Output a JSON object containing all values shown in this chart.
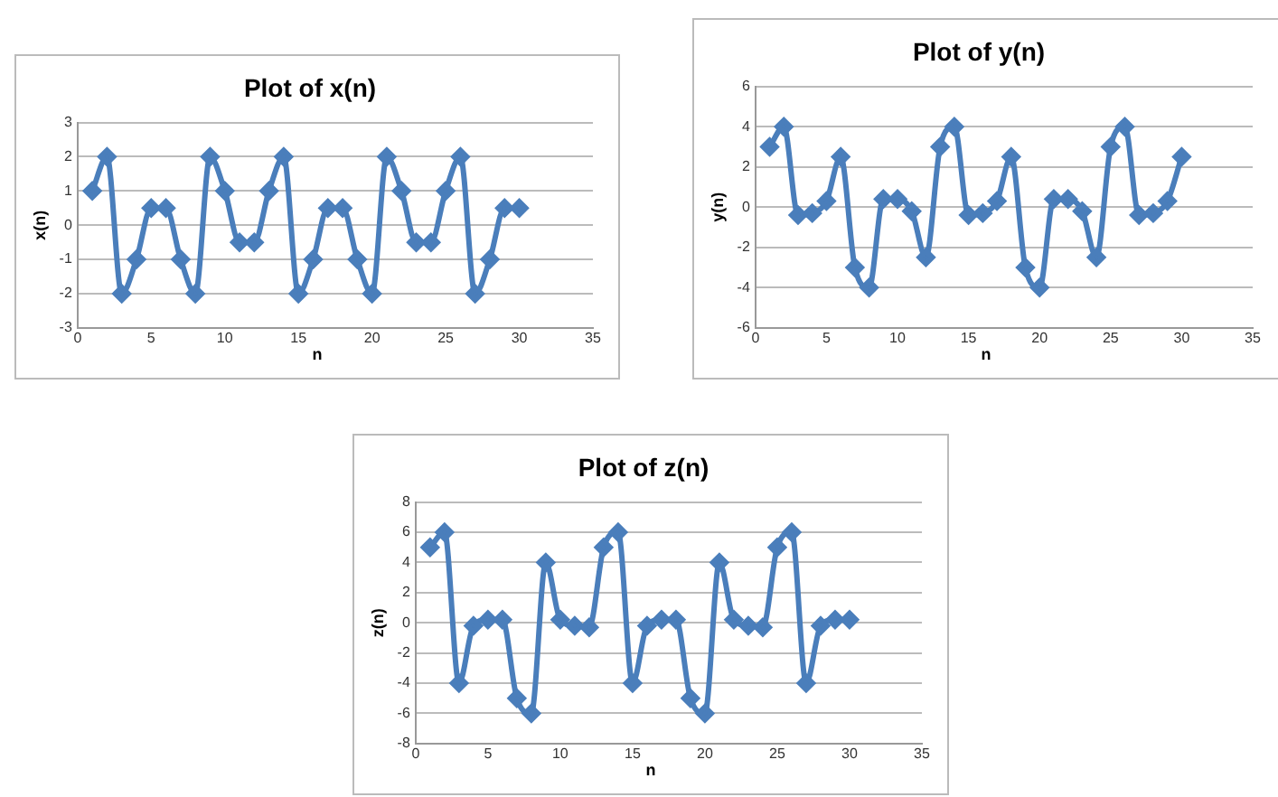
{
  "chart_data": [
    {
      "type": "line",
      "title": "Plot of x(n)",
      "xlabel": "n",
      "ylabel": "x(n)",
      "x": [
        1,
        2,
        3,
        4,
        5,
        6,
        7,
        8,
        9,
        10,
        11,
        12,
        13,
        14,
        15,
        16,
        17,
        18,
        19,
        20,
        21,
        22,
        23,
        24,
        25,
        26,
        27,
        28,
        29,
        30
      ],
      "series": [
        {
          "color": "#4a7ebb",
          "values": [
            1,
            2,
            -2,
            -1,
            0.5,
            0.5,
            -1,
            -2,
            2,
            1,
            -0.5,
            -0.5,
            1,
            2,
            -2,
            -1,
            0.5,
            0.5,
            -1,
            -2,
            2,
            1,
            -0.5,
            -0.5,
            1,
            2,
            -2,
            -1,
            0.5,
            0.5
          ]
        }
      ],
      "xlim": [
        0,
        35
      ],
      "xticks": [
        0,
        5,
        10,
        15,
        20,
        25,
        30,
        35
      ],
      "ylim": [
        -3,
        3
      ],
      "yticks": [
        -3,
        -2,
        -1,
        0,
        1,
        2,
        3
      ],
      "grid": "y",
      "legend": false,
      "marker": "diamond",
      "line_style": "solid"
    },
    {
      "type": "line",
      "title": "Plot of y(n)",
      "xlabel": "n",
      "ylabel": "y(n)",
      "x": [
        1,
        2,
        3,
        4,
        5,
        6,
        7,
        8,
        9,
        10,
        11,
        12,
        13,
        14,
        15,
        16,
        17,
        18,
        19,
        20,
        21,
        22,
        23,
        24,
        25,
        26,
        27,
        28,
        29,
        30
      ],
      "series": [
        {
          "color": "#4a7ebb",
          "values": [
            3,
            4,
            -0.4,
            -0.3,
            0.3,
            2.5,
            -3,
            -4,
            0.4,
            0.4,
            -0.2,
            -2.5,
            3,
            4,
            -0.4,
            -0.3,
            0.3,
            2.5,
            -3,
            -4,
            0.4,
            0.4,
            -0.2,
            -2.5,
            3,
            4,
            -0.4,
            -0.3,
            0.3,
            2.5
          ]
        }
      ],
      "xlim": [
        0,
        35
      ],
      "xticks": [
        0,
        5,
        10,
        15,
        20,
        25,
        30,
        35
      ],
      "ylim": [
        -6,
        6
      ],
      "yticks": [
        -6,
        -4,
        -2,
        0,
        2,
        4,
        6
      ],
      "grid": "y",
      "legend": false,
      "marker": "diamond",
      "line_style": "solid"
    },
    {
      "type": "line",
      "title": "Plot of z(n)",
      "xlabel": "n",
      "ylabel": "z(n)",
      "x": [
        1,
        2,
        3,
        4,
        5,
        6,
        7,
        8,
        9,
        10,
        11,
        12,
        13,
        14,
        15,
        16,
        17,
        18,
        19,
        20,
        21,
        22,
        23,
        24,
        25,
        26,
        27,
        28,
        29,
        30
      ],
      "series": [
        {
          "color": "#4a7ebb",
          "values": [
            5,
            6,
            -4,
            -0.2,
            0.2,
            0.2,
            -5,
            -6,
            4,
            0.2,
            -0.2,
            -0.3,
            5,
            6,
            -4,
            -0.2,
            0.2,
            0.2,
            -5,
            -6,
            4,
            0.2,
            -0.2,
            -0.3,
            5,
            6,
            -4,
            -0.2,
            0.2,
            0.2
          ]
        }
      ],
      "xlim": [
        0,
        35
      ],
      "xticks": [
        0,
        5,
        10,
        15,
        20,
        25,
        30,
        35
      ],
      "ylim": [
        -8,
        8
      ],
      "yticks": [
        -8,
        -6,
        -4,
        -2,
        0,
        2,
        4,
        6,
        8
      ],
      "grid": "y",
      "legend": false,
      "marker": "diamond",
      "line_style": "solid"
    }
  ]
}
